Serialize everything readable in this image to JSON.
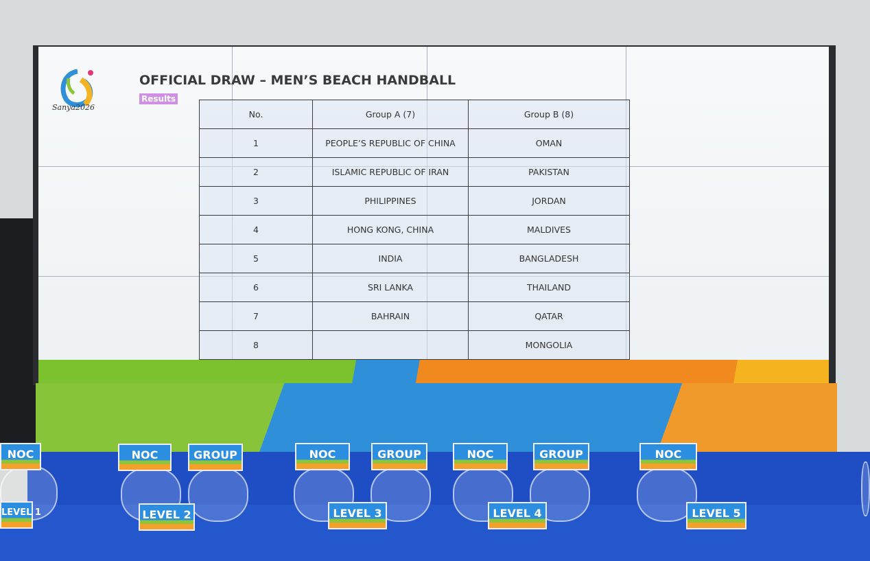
{
  "screen": {
    "logo_text": "Sanya2026",
    "title": "OFFICIAL DRAW – MEN’S BEACH HANDBALL",
    "subtitle": "Results",
    "table": {
      "headers": [
        "No.",
        "Group A (7)",
        "Group B (8)"
      ],
      "rows": [
        [
          "1",
          "PEOPLE’S REPUBLIC OF CHINA",
          "OMAN"
        ],
        [
          "2",
          "ISLAMIC REPUBLIC OF IRAN",
          "PAKISTAN"
        ],
        [
          "3",
          "PHILIPPINES",
          "JORDAN"
        ],
        [
          "4",
          "HONG KONG, CHINA",
          "MALDIVES"
        ],
        [
          "5",
          "INDIA",
          "BANGLADESH"
        ],
        [
          "6",
          "SRI LANKA",
          "THAILAND"
        ],
        [
          "7",
          "BAHRAIN",
          "QATAR"
        ],
        [
          "8",
          "",
          "MONGOLIA"
        ]
      ]
    }
  },
  "placards": {
    "noc": "NOC",
    "group": "GROUP",
    "levels": [
      "LEVEL 1",
      "LEVEL 2",
      "LEVEL 3",
      "LEVEL 4",
      "LEVEL 5"
    ]
  },
  "colors": {
    "screen_bg": "#f3f6f8",
    "cloth": "#2456cc",
    "subtitle_bg": "#cf8fe4",
    "banner_green": "#88c43a",
    "banner_blue": "#2f8fd8",
    "banner_orange": "#f19a2c"
  }
}
